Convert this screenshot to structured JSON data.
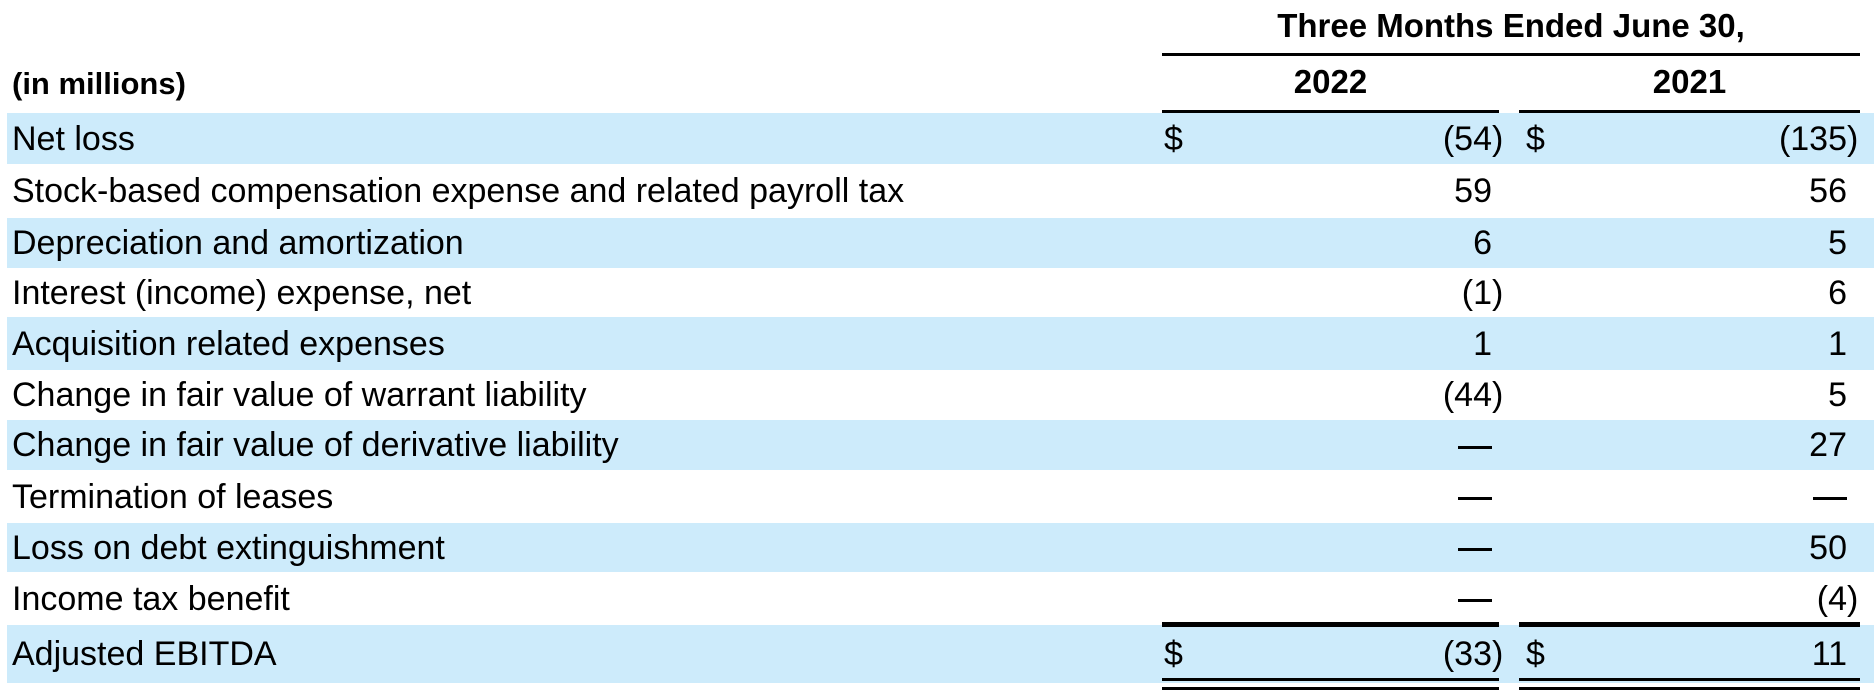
{
  "header": {
    "period": "Three Months Ended June 30,",
    "units": "(in millions)",
    "years": [
      "2022",
      "2021"
    ]
  },
  "currency_symbol": "$",
  "colors": {
    "row_shade": "#cdebfb",
    "text": "#000000"
  },
  "rows": [
    {
      "label": "Net loss",
      "v2022": "(54)",
      "v2021": "(135)",
      "currency": true,
      "shaded": true
    },
    {
      "label": "Stock-based compensation expense and related payroll tax",
      "v2022": "59",
      "v2021": "56",
      "currency": false,
      "shaded": false
    },
    {
      "label": "Depreciation and amortization",
      "v2022": "6",
      "v2021": "5",
      "currency": false,
      "shaded": true
    },
    {
      "label": "Interest (income) expense, net",
      "v2022": "(1)",
      "v2021": "6",
      "currency": false,
      "shaded": false
    },
    {
      "label": "Acquisition related expenses",
      "v2022": "1",
      "v2021": "1",
      "currency": false,
      "shaded": true
    },
    {
      "label": "Change in fair value of warrant liability",
      "v2022": "(44)",
      "v2021": "5",
      "currency": false,
      "shaded": false
    },
    {
      "label": "Change in fair value of derivative liability",
      "v2022": "—",
      "v2021": "27",
      "currency": false,
      "shaded": true
    },
    {
      "label": "Termination of leases",
      "v2022": "—",
      "v2021": "—",
      "currency": false,
      "shaded": false
    },
    {
      "label": "Loss on debt extinguishment",
      "v2022": "—",
      "v2021": "50",
      "currency": false,
      "shaded": true
    },
    {
      "label": "Income tax benefit",
      "v2022": "—",
      "v2021": "(4)",
      "currency": false,
      "shaded": false
    },
    {
      "label": "Adjusted EBITDA",
      "v2022": "(33)",
      "v2021": "11",
      "currency": true,
      "shaded": true
    }
  ]
}
